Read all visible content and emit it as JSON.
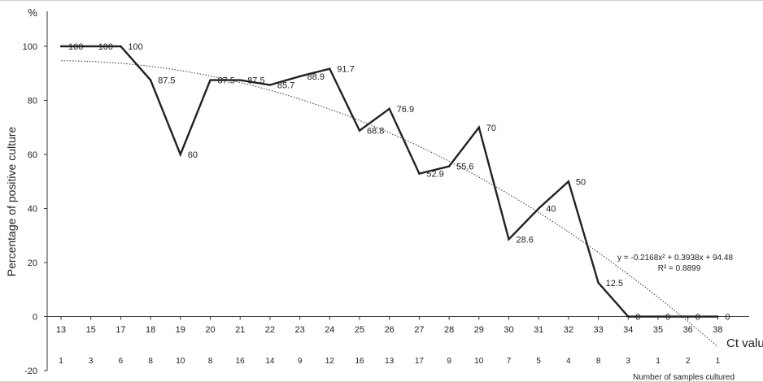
{
  "chart_data": {
    "type": "line",
    "ylabel": "Percentage of positive culture",
    "y_unit": "%",
    "xlabel": "Ct value",
    "count_label": "Number of samples cultured",
    "ylim": [
      -20,
      100
    ],
    "yticks": [
      -20,
      0,
      20,
      40,
      60,
      80,
      100
    ],
    "x": [
      13,
      15,
      17,
      18,
      19,
      20,
      21,
      22,
      23,
      24,
      25,
      26,
      27,
      28,
      29,
      30,
      31,
      32,
      33,
      34,
      35,
      36,
      38
    ],
    "counts": [
      1,
      3,
      6,
      8,
      10,
      8,
      16,
      14,
      9,
      12,
      16,
      13,
      17,
      9,
      10,
      7,
      5,
      4,
      8,
      3,
      1,
      2,
      1
    ],
    "series": [
      {
        "values": [
          100,
          100,
          100,
          87.5,
          60,
          87.5,
          87.5,
          85.7,
          88.9,
          91.7,
          68.8,
          76.9,
          52.9,
          55.6,
          70,
          28.6,
          40,
          50,
          12.5,
          0,
          0,
          0,
          0
        ],
        "labels": [
          "100",
          "100",
          "100",
          "87.5",
          "60",
          "87.5",
          "87.5",
          "85.7",
          "88.9",
          "91.7",
          "68.8",
          "76.9",
          "52.9",
          "55.6",
          "70",
          "28.6",
          "40",
          "50",
          "12.5",
          "0",
          "0",
          "0",
          "0"
        ]
      }
    ],
    "trendline": {
      "type": "polynomial",
      "a": -0.2168,
      "b": 0.3938,
      "c": 94.48,
      "equation": "y = -0.2168x² + 0.3938x + 94.48",
      "r2": "R² = 0.8899"
    },
    "grid": false,
    "line_color": "#222222",
    "trend_color": "#333333"
  }
}
